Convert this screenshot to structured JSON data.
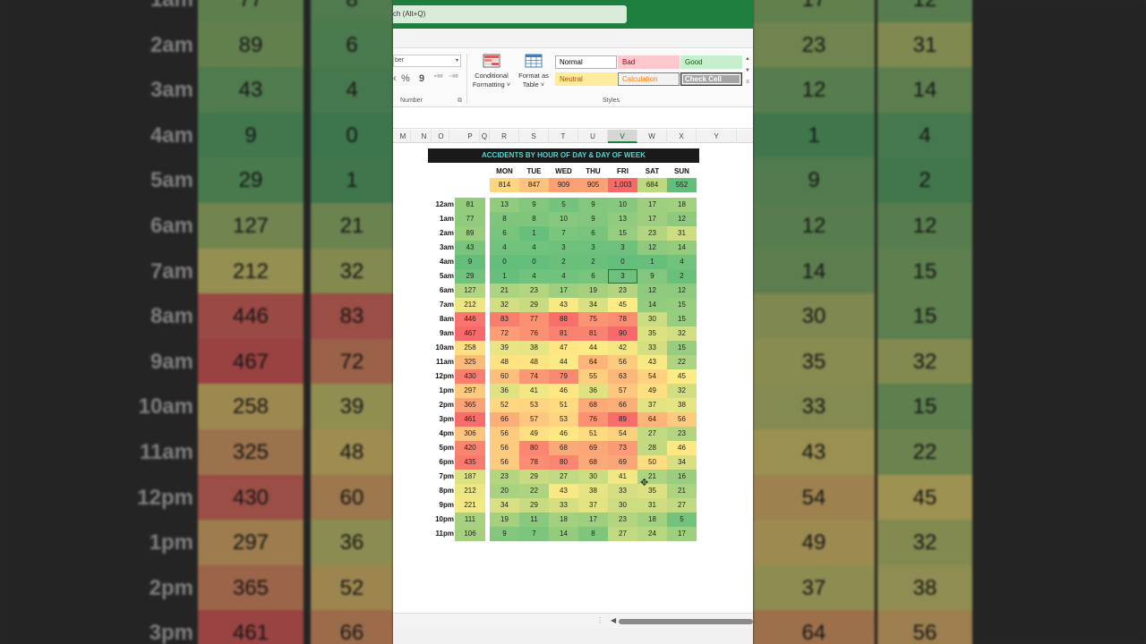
{
  "search": {
    "text": "ch (Alt+Q)"
  },
  "ribbon": {
    "number_format": "ber",
    "number_group": "Number",
    "styles_group": "Styles",
    "conditional_formatting": [
      "Conditional",
      "Formatting ˅"
    ],
    "format_as_table": [
      "Format as",
      "Table ˅"
    ],
    "styles": [
      {
        "label": "Normal",
        "bg": "#ffffff",
        "fg": "#000000",
        "border": "#b0b0b0"
      },
      {
        "label": "Bad",
        "bg": "#ffc7ce",
        "fg": "#9c0006",
        "border": "#ffc7ce"
      },
      {
        "label": "Good",
        "bg": "#c6efce",
        "fg": "#006100",
        "border": "#c6efce"
      },
      {
        "label": "Neutral",
        "bg": "#ffeb9c",
        "fg": "#9c5700",
        "border": "#ffeb9c"
      },
      {
        "label": "Calculation",
        "bg": "#f2f2f2",
        "fg": "#fa7d00",
        "border": "#7f7f7f"
      },
      {
        "label": "Check Cell",
        "bg": "#a5a5a5",
        "fg": "#ffffff",
        "border": "#3f3f3f"
      }
    ]
  },
  "columns": [
    "M",
    "N",
    "O",
    "P",
    "Q",
    "R",
    "S",
    "T",
    "U",
    "V",
    "W",
    "X",
    "Y"
  ],
  "selected_column": "V",
  "sheet": {
    "title": "ACCIDENTS BY HOUR OF DAY & DAY OF WEEK",
    "days": [
      "MON",
      "TUE",
      "WED",
      "THU",
      "FRI",
      "SAT",
      "SUN"
    ],
    "day_totals": [
      "814",
      "847",
      "909",
      "905",
      "1,003",
      "684",
      "552"
    ],
    "hours": [
      "12am",
      "1am",
      "2am",
      "3am",
      "4am",
      "5am",
      "6am",
      "7am",
      "8am",
      "9am",
      "10am",
      "11am",
      "12pm",
      "1pm",
      "2pm",
      "3pm",
      "4pm",
      "5pm",
      "6pm",
      "7pm",
      "8pm",
      "9pm",
      "10pm",
      "11pm"
    ],
    "hour_totals": [
      "81",
      "77",
      "89",
      "43",
      "9",
      "29",
      "127",
      "212",
      "446",
      "467",
      "258",
      "325",
      "430",
      "297",
      "365",
      "461",
      "306",
      "420",
      "435",
      "187",
      "212",
      "221",
      "111",
      "106"
    ],
    "grid": [
      [
        "13",
        "9",
        "5",
        "9",
        "10",
        "17",
        "18"
      ],
      [
        "8",
        "8",
        "10",
        "9",
        "13",
        "17",
        "12"
      ],
      [
        "6",
        "1",
        "7",
        "6",
        "15",
        "23",
        "31"
      ],
      [
        "4",
        "4",
        "3",
        "3",
        "3",
        "12",
        "14"
      ],
      [
        "0",
        "0",
        "2",
        "2",
        "0",
        "1",
        "4"
      ],
      [
        "1",
        "4",
        "4",
        "6",
        "3",
        "9",
        "2"
      ],
      [
        "21",
        "23",
        "17",
        "19",
        "23",
        "12",
        "12"
      ],
      [
        "32",
        "29",
        "43",
        "34",
        "45",
        "14",
        "15"
      ],
      [
        "83",
        "77",
        "88",
        "75",
        "78",
        "30",
        "15"
      ],
      [
        "72",
        "76",
        "81",
        "81",
        "90",
        "35",
        "32"
      ],
      [
        "39",
        "38",
        "47",
        "44",
        "42",
        "33",
        "15"
      ],
      [
        "48",
        "48",
        "44",
        "64",
        "56",
        "43",
        "22"
      ],
      [
        "60",
        "74",
        "79",
        "55",
        "63",
        "54",
        "45"
      ],
      [
        "36",
        "41",
        "46",
        "36",
        "57",
        "49",
        "32"
      ],
      [
        "52",
        "53",
        "51",
        "68",
        "66",
        "37",
        "38"
      ],
      [
        "66",
        "57",
        "53",
        "76",
        "89",
        "64",
        "56"
      ],
      [
        "56",
        "49",
        "46",
        "51",
        "54",
        "27",
        "23"
      ],
      [
        "56",
        "80",
        "68",
        "69",
        "73",
        "28",
        "46"
      ],
      [
        "56",
        "78",
        "80",
        "68",
        "69",
        "50",
        "34"
      ],
      [
        "23",
        "29",
        "27",
        "30",
        "41",
        "21",
        "16"
      ],
      [
        "20",
        "22",
        "43",
        "38",
        "33",
        "35",
        "21"
      ],
      [
        "34",
        "29",
        "33",
        "37",
        "30",
        "31",
        "27"
      ],
      [
        "19",
        "11",
        "18",
        "17",
        "23",
        "18",
        "5"
      ],
      [
        "9",
        "7",
        "14",
        "8",
        "27",
        "24",
        "17"
      ]
    ],
    "selected_cell": {
      "row": 5,
      "col": 4
    }
  },
  "background_zoom": {
    "rows": [
      {
        "label": "1am",
        "a": "77",
        "b": "8",
        "c": "17",
        "d": "12"
      },
      {
        "label": "2am",
        "a": "89",
        "b": "6",
        "c": "23",
        "d": "31"
      },
      {
        "label": "3am",
        "a": "43",
        "b": "4",
        "c": "12",
        "d": "14"
      },
      {
        "label": "4am",
        "a": "9",
        "b": "0",
        "c": "1",
        "d": "4"
      },
      {
        "label": "5am",
        "a": "29",
        "b": "1",
        "c": "9",
        "d": "2"
      },
      {
        "label": "6am",
        "a": "127",
        "b": "21",
        "c": "12",
        "d": "12"
      },
      {
        "label": "7am",
        "a": "212",
        "b": "32",
        "c": "14",
        "d": "15"
      },
      {
        "label": "8am",
        "a": "446",
        "b": "83",
        "c": "30",
        "d": "15"
      },
      {
        "label": "9am",
        "a": "467",
        "b": "72",
        "c": "35",
        "d": "32"
      },
      {
        "label": "10am",
        "a": "258",
        "b": "39",
        "c": "33",
        "d": "15"
      },
      {
        "label": "11am",
        "a": "325",
        "b": "48",
        "c": "43",
        "d": "22"
      },
      {
        "label": "12pm",
        "a": "430",
        "b": "60",
        "c": "54",
        "d": "45"
      },
      {
        "label": "1pm",
        "a": "297",
        "b": "36",
        "c": "49",
        "d": "32"
      },
      {
        "label": "2pm",
        "a": "365",
        "b": "52",
        "c": "37",
        "d": "38"
      },
      {
        "label": "3pm",
        "a": "461",
        "b": "66",
        "c": "64",
        "d": "56"
      }
    ]
  }
}
